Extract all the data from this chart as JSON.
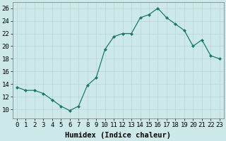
{
  "x": [
    0,
    1,
    2,
    3,
    4,
    5,
    6,
    7,
    8,
    9,
    10,
    11,
    12,
    13,
    14,
    15,
    16,
    17,
    18,
    19,
    20,
    21,
    22,
    23
  ],
  "y": [
    13.5,
    13.0,
    13.0,
    12.5,
    11.5,
    10.5,
    9.8,
    10.5,
    13.8,
    15.0,
    19.5,
    21.5,
    22.0,
    22.0,
    24.5,
    25.0,
    26.0,
    24.5,
    23.5,
    22.5,
    20.0,
    21.0,
    18.5,
    18.0
  ],
  "xlabel": "Humidex (Indice chaleur)",
  "ylim": [
    8.5,
    27
  ],
  "yticks": [
    10,
    12,
    14,
    16,
    18,
    20,
    22,
    24,
    26
  ],
  "xticks": [
    0,
    1,
    2,
    3,
    4,
    5,
    6,
    7,
    8,
    9,
    10,
    11,
    12,
    13,
    14,
    15,
    16,
    17,
    18,
    19,
    20,
    21,
    22,
    23
  ],
  "line_color": "#1a7a6a",
  "marker_color": "#1a7a6a",
  "bg_color": "#cce8e8",
  "grid_color_major": "#b8d4d4",
  "grid_color_minor": "#d8ecec",
  "xlabel_fontsize": 7.5,
  "tick_fontsize": 6.5
}
